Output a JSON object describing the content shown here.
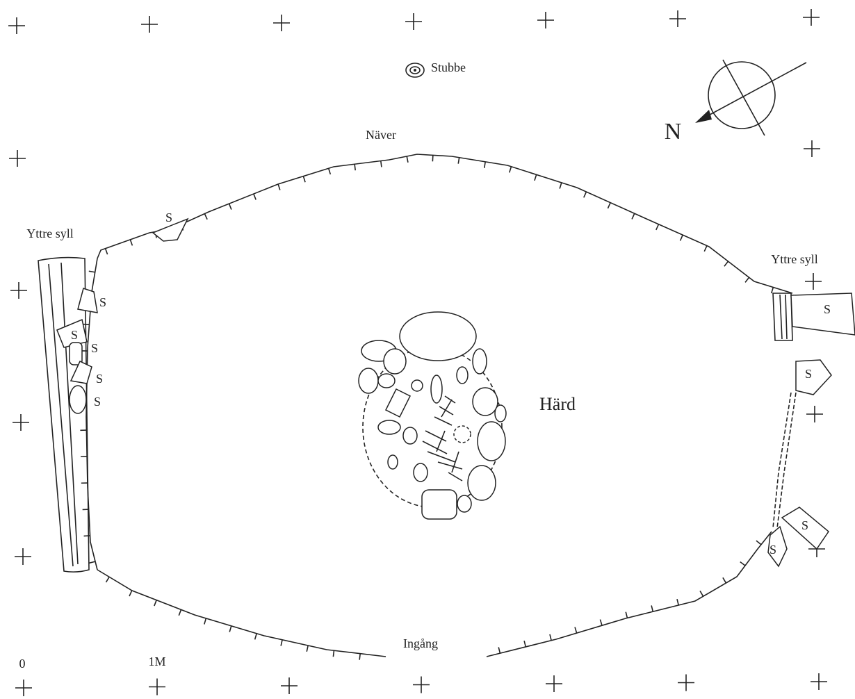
{
  "labels": {
    "stump": "Stubbe",
    "bark": "Näver",
    "north": "N",
    "sill_left": "Yttre syll",
    "sill_right": "Yttre syll",
    "hearth": "Härd",
    "entrance": "Ingång",
    "scale_start": "0",
    "scale_end": "1M"
  },
  "stones": [
    "S",
    "S",
    "S",
    "S",
    "S",
    "S",
    "S",
    "S",
    "S",
    "S"
  ]
}
